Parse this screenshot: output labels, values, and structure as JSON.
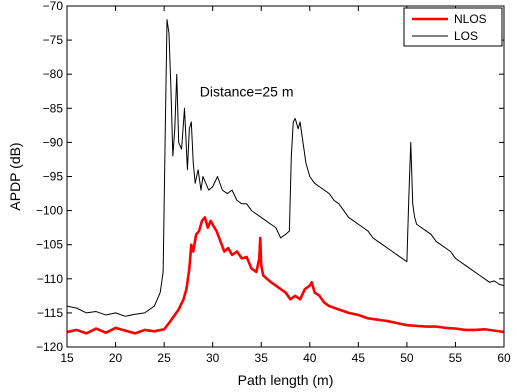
{
  "chart_data": {
    "type": "line",
    "xlabel": "Path length (m)",
    "ylabel": "APDP (dB)",
    "xlim": [
      15,
      60
    ],
    "ylim": [
      -120,
      -70
    ],
    "x_ticks": [
      15,
      20,
      25,
      30,
      35,
      40,
      45,
      50,
      55,
      60
    ],
    "x_tick_labels": [
      "15",
      "20",
      "25",
      "30",
      "35",
      "40",
      "45",
      "50",
      "55",
      "60"
    ],
    "y_ticks": [
      -120,
      -115,
      -110,
      -105,
      -100,
      -95,
      -90,
      -85,
      -80,
      -75,
      -70
    ],
    "y_tick_labels": [
      "−120",
      "−115",
      "−110",
      "−105",
      "−100",
      "−95",
      "−90",
      "−85",
      "−80",
      "−75",
      "−70"
    ],
    "grid": false,
    "legend_position": "top-right",
    "annotation": {
      "text": "Distance=25 m",
      "x": 33.5,
      "y": -83.3
    },
    "series": [
      {
        "name": "NLOS",
        "color": "#ff0000",
        "x": [
          15,
          16,
          17,
          18,
          19,
          20,
          21,
          22,
          23,
          24,
          25,
          25.5,
          26,
          26.5,
          27,
          27.3,
          27.6,
          27.8,
          28,
          28.3,
          28.6,
          28.9,
          29.2,
          29.5,
          29.8,
          30.1,
          30.4,
          30.8,
          31.2,
          31.6,
          32,
          32.5,
          33,
          33.5,
          34,
          34.5,
          34.8,
          34.9,
          35,
          35.2,
          35.6,
          36,
          36.5,
          37,
          37.5,
          38,
          38.5,
          39,
          39.5,
          40,
          40.2,
          40.5,
          41,
          41.5,
          42,
          43,
          44,
          45,
          46,
          47,
          48,
          49,
          50,
          51,
          52,
          53,
          54,
          55,
          56,
          57,
          58,
          59,
          60
        ],
        "y": [
          -117.8,
          -117.5,
          -118,
          -117.3,
          -117.9,
          -117.2,
          -117.6,
          -118,
          -117.5,
          -117.7,
          -117.4,
          -116.5,
          -115.5,
          -114.5,
          -113,
          -111.5,
          -108.5,
          -105,
          -106,
          -103.5,
          -103,
          -101.5,
          -101,
          -102.5,
          -101.5,
          -102.3,
          -103,
          -104.5,
          -106,
          -105.5,
          -106.5,
          -106,
          -107,
          -106.8,
          -108.5,
          -109,
          -107,
          -104,
          -108,
          -109.5,
          -110,
          -110.5,
          -111,
          -111.5,
          -112,
          -113,
          -112.5,
          -113,
          -111.5,
          -111,
          -110.5,
          -112,
          -112.5,
          -113.5,
          -114,
          -114.5,
          -115,
          -115.3,
          -115.8,
          -116,
          -116.2,
          -116.5,
          -116.8,
          -116.9,
          -117,
          -117,
          -117.2,
          -117.3,
          -117.5,
          -117.5,
          -117.4,
          -117.6,
          -117.8
        ]
      },
      {
        "name": "LOS",
        "color": "#000000",
        "x": [
          15,
          16,
          17,
          18,
          19,
          20,
          21,
          22,
          23,
          24,
          24.6,
          24.9,
          25.1,
          25.3,
          25.5,
          25.7,
          25.9,
          26.1,
          26.3,
          26.5,
          26.8,
          27.1,
          27.4,
          27.6,
          27.8,
          28,
          28.2,
          28.5,
          28.8,
          29,
          29.3,
          29.6,
          30,
          30.5,
          31,
          31.5,
          32,
          32.5,
          33,
          33.5,
          34,
          34.5,
          35,
          35.5,
          36,
          36.5,
          37,
          37.5,
          37.9,
          38.1,
          38.3,
          38.5,
          38.8,
          39,
          39.3,
          39.6,
          40,
          40.5,
          41,
          41.5,
          42,
          42.5,
          43,
          43.5,
          44,
          44.5,
          45,
          45.5,
          46,
          46.5,
          47,
          47.5,
          48,
          48.5,
          49,
          49.5,
          50,
          50.2,
          50.4,
          50.6,
          50.8,
          51,
          51.5,
          52,
          52.5,
          53,
          53.5,
          54,
          54.5,
          55,
          55.5,
          56,
          56.5,
          57,
          57.5,
          58,
          58.5,
          59,
          59.5,
          60
        ],
        "y": [
          -114,
          -114.3,
          -115,
          -114.8,
          -115.3,
          -115,
          -115.5,
          -115.2,
          -115,
          -114,
          -112,
          -109,
          -90,
          -72,
          -74,
          -82,
          -92,
          -88,
          -80,
          -90,
          -91,
          -85,
          -94,
          -88,
          -87,
          -93,
          -96,
          -94,
          -97,
          -95,
          -96,
          -97,
          -96.5,
          -95,
          -97,
          -97.5,
          -97,
          -98.5,
          -99,
          -99,
          -100,
          -100.5,
          -101,
          -101.5,
          -102,
          -102.5,
          -104,
          -103.5,
          -103,
          -92,
          -87,
          -86.5,
          -88,
          -87,
          -90,
          -93,
          -95,
          -96,
          -96.5,
          -97,
          -97.5,
          -98.5,
          -99,
          -100,
          -101,
          -101.5,
          -102,
          -102.5,
          -103,
          -104,
          -104.5,
          -105,
          -105.5,
          -106,
          -106.5,
          -107,
          -107.5,
          -98,
          -90,
          -99,
          -101,
          -102,
          -102.5,
          -103,
          -103.5,
          -104.5,
          -105,
          -105.5,
          -106,
          -107,
          -107.5,
          -108,
          -108.5,
          -109,
          -109.5,
          -110,
          -110.5,
          -110.3,
          -110.8,
          -111
        ]
      }
    ]
  }
}
